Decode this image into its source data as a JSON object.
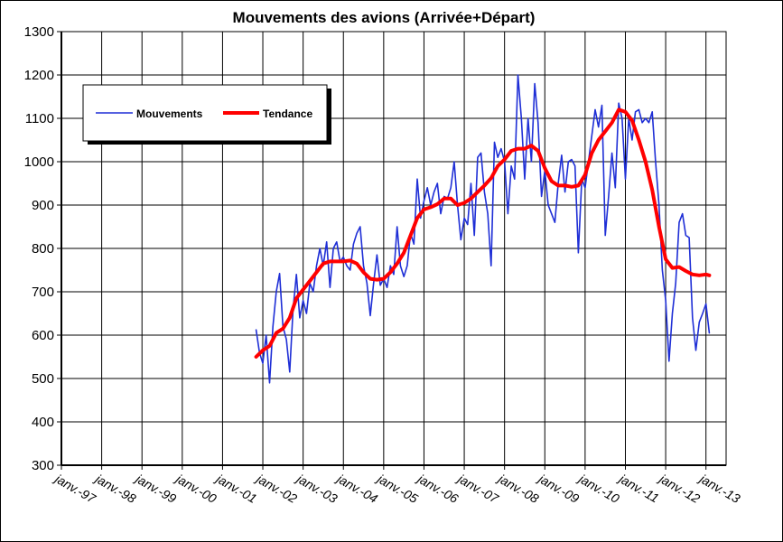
{
  "chart_data": {
    "type": "line",
    "title": "Mouvements des avions (Arrivée+Départ)",
    "xlabel": "",
    "ylabel": "",
    "ylim": [
      300,
      1300
    ],
    "yticks": [
      300,
      400,
      500,
      600,
      700,
      800,
      900,
      1000,
      1100,
      1200,
      1300
    ],
    "xticks": [
      "janv.-97",
      "janv.-98",
      "janv.-99",
      "janv.-00",
      "janv.-01",
      "janv.-02",
      "janv.-03",
      "janv.-04",
      "janv.-05",
      "janv.-06",
      "janv.-07",
      "janv.-08",
      "janv.-09",
      "janv.-10",
      "janv.-11",
      "janv.-12",
      "janv.-13"
    ],
    "xlim": [
      "1997-01",
      "2013-07"
    ],
    "grid": true,
    "legend": "top-left",
    "series": [
      {
        "name": "Mouvements",
        "color": "#1f2fd6",
        "points": [
          [
            "2001-11",
            612
          ],
          [
            "2001-12",
            560
          ],
          [
            "2002-01",
            535
          ],
          [
            "2002-02",
            600
          ],
          [
            "2002-03",
            490
          ],
          [
            "2002-04",
            620
          ],
          [
            "2002-05",
            700
          ],
          [
            "2002-06",
            742
          ],
          [
            "2002-07",
            620
          ],
          [
            "2002-08",
            590
          ],
          [
            "2002-09",
            515
          ],
          [
            "2002-10",
            660
          ],
          [
            "2002-11",
            740
          ],
          [
            "2002-12",
            640
          ],
          [
            "2003-01",
            680
          ],
          [
            "2003-02",
            650
          ],
          [
            "2003-03",
            720
          ],
          [
            "2003-04",
            700
          ],
          [
            "2003-05",
            760
          ],
          [
            "2003-06",
            800
          ],
          [
            "2003-07",
            760
          ],
          [
            "2003-08",
            815
          ],
          [
            "2003-09",
            710
          ],
          [
            "2003-10",
            800
          ],
          [
            "2003-11",
            815
          ],
          [
            "2003-12",
            770
          ],
          [
            "2004-01",
            780
          ],
          [
            "2004-02",
            760
          ],
          [
            "2004-03",
            750
          ],
          [
            "2004-04",
            810
          ],
          [
            "2004-05",
            835
          ],
          [
            "2004-06",
            850
          ],
          [
            "2004-07",
            760
          ],
          [
            "2004-08",
            720
          ],
          [
            "2004-09",
            645
          ],
          [
            "2004-10",
            720
          ],
          [
            "2004-11",
            785
          ],
          [
            "2004-12",
            715
          ],
          [
            "2005-01",
            730
          ],
          [
            "2005-02",
            710
          ],
          [
            "2005-03",
            760
          ],
          [
            "2005-04",
            740
          ],
          [
            "2005-05",
            850
          ],
          [
            "2005-06",
            760
          ],
          [
            "2005-07",
            735
          ],
          [
            "2005-08",
            760
          ],
          [
            "2005-09",
            835
          ],
          [
            "2005-10",
            810
          ],
          [
            "2005-11",
            960
          ],
          [
            "2005-12",
            870
          ],
          [
            "2006-01",
            910
          ],
          [
            "2006-02",
            940
          ],
          [
            "2006-03",
            900
          ],
          [
            "2006-04",
            930
          ],
          [
            "2006-05",
            950
          ],
          [
            "2006-06",
            880
          ],
          [
            "2006-07",
            920
          ],
          [
            "2006-08",
            915
          ],
          [
            "2006-09",
            940
          ],
          [
            "2006-10",
            1000
          ],
          [
            "2006-11",
            900
          ],
          [
            "2006-12",
            820
          ],
          [
            "2007-01",
            870
          ],
          [
            "2007-02",
            855
          ],
          [
            "2007-03",
            950
          ],
          [
            "2007-04",
            830
          ],
          [
            "2007-05",
            1010
          ],
          [
            "2007-06",
            1020
          ],
          [
            "2007-07",
            930
          ],
          [
            "2007-08",
            880
          ],
          [
            "2007-09",
            760
          ],
          [
            "2007-10",
            1045
          ],
          [
            "2007-11",
            1010
          ],
          [
            "2007-12",
            1030
          ],
          [
            "2008-01",
            1000
          ],
          [
            "2008-02",
            880
          ],
          [
            "2008-03",
            990
          ],
          [
            "2008-04",
            960
          ],
          [
            "2008-05",
            1200
          ],
          [
            "2008-06",
            1100
          ],
          [
            "2008-07",
            960
          ],
          [
            "2008-08",
            1100
          ],
          [
            "2008-09",
            1000
          ],
          [
            "2008-10",
            1180
          ],
          [
            "2008-11",
            1090
          ],
          [
            "2008-12",
            920
          ],
          [
            "2009-01",
            980
          ],
          [
            "2009-02",
            900
          ],
          [
            "2009-03",
            880
          ],
          [
            "2009-04",
            860
          ],
          [
            "2009-05",
            950
          ],
          [
            "2009-06",
            1015
          ],
          [
            "2009-07",
            930
          ],
          [
            "2009-08",
            1000
          ],
          [
            "2009-09",
            1005
          ],
          [
            "2009-10",
            990
          ],
          [
            "2009-11",
            790
          ],
          [
            "2009-12",
            960
          ],
          [
            "2010-01",
            940
          ],
          [
            "2010-02",
            1000
          ],
          [
            "2010-03",
            1060
          ],
          [
            "2010-04",
            1120
          ],
          [
            "2010-05",
            1080
          ],
          [
            "2010-06",
            1130
          ],
          [
            "2010-07",
            830
          ],
          [
            "2010-08",
            920
          ],
          [
            "2010-09",
            1020
          ],
          [
            "2010-10",
            940
          ],
          [
            "2010-11",
            1135
          ],
          [
            "2010-12",
            1100
          ],
          [
            "2011-01",
            960
          ],
          [
            "2011-02",
            1100
          ],
          [
            "2011-03",
            1050
          ],
          [
            "2011-04",
            1115
          ],
          [
            "2011-05",
            1120
          ],
          [
            "2011-06",
            1090
          ],
          [
            "2011-07",
            1100
          ],
          [
            "2011-08",
            1090
          ],
          [
            "2011-09",
            1115
          ],
          [
            "2011-10",
            1000
          ],
          [
            "2011-11",
            900
          ],
          [
            "2011-12",
            750
          ],
          [
            "2012-01",
            680
          ],
          [
            "2012-02",
            540
          ],
          [
            "2012-03",
            650
          ],
          [
            "2012-04",
            720
          ],
          [
            "2012-05",
            860
          ],
          [
            "2012-06",
            880
          ],
          [
            "2012-07",
            830
          ],
          [
            "2012-08",
            825
          ],
          [
            "2012-09",
            640
          ],
          [
            "2012-10",
            565
          ],
          [
            "2012-11",
            630
          ],
          [
            "2012-12",
            650
          ],
          [
            "2013-01",
            672
          ],
          [
            "2013-02",
            605
          ]
        ]
      },
      {
        "name": "Tendance",
        "color": "#ff0000",
        "points": [
          [
            "2001-11",
            550
          ],
          [
            "2002-01",
            565
          ],
          [
            "2002-03",
            575
          ],
          [
            "2002-05",
            605
          ],
          [
            "2002-07",
            615
          ],
          [
            "2002-09",
            640
          ],
          [
            "2002-11",
            685
          ],
          [
            "2003-01",
            705
          ],
          [
            "2003-03",
            725
          ],
          [
            "2003-05",
            745
          ],
          [
            "2003-07",
            765
          ],
          [
            "2003-09",
            770
          ],
          [
            "2003-11",
            770
          ],
          [
            "2004-01",
            770
          ],
          [
            "2004-03",
            772
          ],
          [
            "2004-05",
            765
          ],
          [
            "2004-07",
            745
          ],
          [
            "2004-09",
            730
          ],
          [
            "2004-11",
            728
          ],
          [
            "2005-01",
            730
          ],
          [
            "2005-03",
            745
          ],
          [
            "2005-05",
            765
          ],
          [
            "2005-07",
            790
          ],
          [
            "2005-09",
            830
          ],
          [
            "2005-11",
            870
          ],
          [
            "2006-01",
            890
          ],
          [
            "2006-03",
            895
          ],
          [
            "2006-05",
            902
          ],
          [
            "2006-07",
            915
          ],
          [
            "2006-09",
            915
          ],
          [
            "2006-11",
            900
          ],
          [
            "2007-01",
            905
          ],
          [
            "2007-03",
            915
          ],
          [
            "2007-05",
            930
          ],
          [
            "2007-07",
            945
          ],
          [
            "2007-09",
            962
          ],
          [
            "2007-11",
            990
          ],
          [
            "2008-01",
            1005
          ],
          [
            "2008-03",
            1025
          ],
          [
            "2008-05",
            1030
          ],
          [
            "2008-07",
            1030
          ],
          [
            "2008-09",
            1037
          ],
          [
            "2008-11",
            1025
          ],
          [
            "2009-01",
            985
          ],
          [
            "2009-03",
            955
          ],
          [
            "2009-05",
            945
          ],
          [
            "2009-07",
            945
          ],
          [
            "2009-09",
            942
          ],
          [
            "2009-11",
            945
          ],
          [
            "2010-01",
            970
          ],
          [
            "2010-03",
            1020
          ],
          [
            "2010-05",
            1050
          ],
          [
            "2010-07",
            1070
          ],
          [
            "2010-09",
            1090
          ],
          [
            "2010-11",
            1120
          ],
          [
            "2011-01",
            1115
          ],
          [
            "2011-03",
            1095
          ],
          [
            "2011-05",
            1050
          ],
          [
            "2011-07",
            1000
          ],
          [
            "2011-09",
            935
          ],
          [
            "2011-11",
            850
          ],
          [
            "2012-01",
            775
          ],
          [
            "2012-03",
            755
          ],
          [
            "2012-05",
            757
          ],
          [
            "2012-07",
            748
          ],
          [
            "2012-09",
            740
          ],
          [
            "2012-11",
            738
          ],
          [
            "2013-01",
            740
          ],
          [
            "2013-02",
            738
          ]
        ]
      }
    ]
  }
}
